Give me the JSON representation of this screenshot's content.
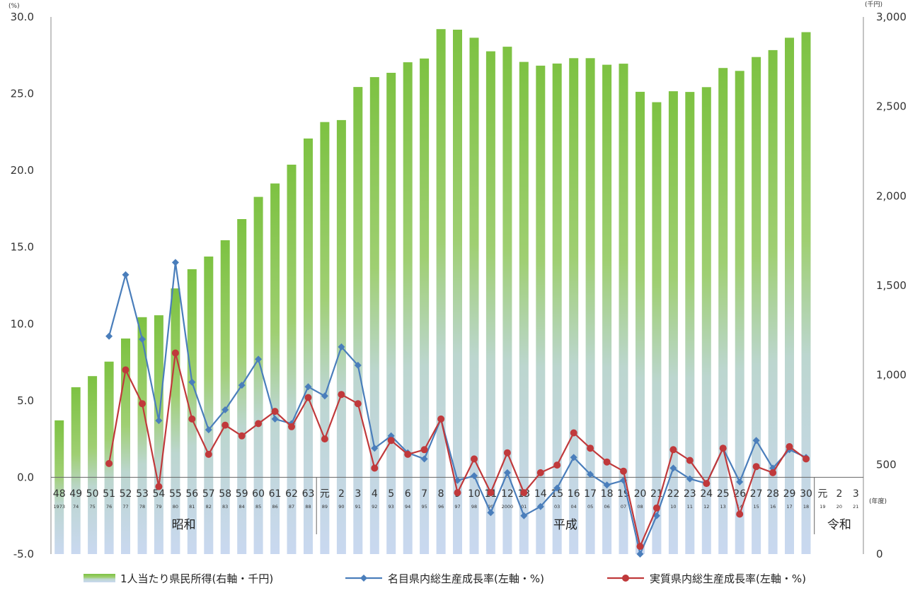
{
  "chart_data": {
    "type": "bar+line",
    "title": "",
    "left_axis": {
      "unit_label": "(%)",
      "ylim": [
        -5.0,
        30.0
      ],
      "ticks": [
        "30.0",
        "25.0",
        "20.0",
        "15.0",
        "10.0",
        "5.0",
        "0.0",
        "-5.0"
      ],
      "negative_color": "#e03020"
    },
    "right_axis": {
      "unit_label": "(千円)",
      "ylim": [
        0,
        3000
      ],
      "ticks": [
        "3,000",
        "2,500",
        "2,000",
        "1,500",
        "1,000",
        "500",
        "0"
      ]
    },
    "x_unit_label": "(年度)",
    "categories": [
      "48",
      "49",
      "50",
      "51",
      "52",
      "53",
      "54",
      "55",
      "56",
      "57",
      "58",
      "59",
      "60",
      "61",
      "62",
      "63",
      "元",
      "2",
      "3",
      "4",
      "5",
      "6",
      "7",
      "8",
      "9",
      "10",
      "11",
      "12",
      "13",
      "14",
      "15",
      "16",
      "17",
      "18",
      "19",
      "20",
      "21",
      "22",
      "23",
      "24",
      "25",
      "26",
      "27",
      "28",
      "29",
      "30",
      "元",
      "2",
      "3"
    ],
    "subcategories": [
      "1973",
      "74",
      "75",
      "76",
      "77",
      "78",
      "79",
      "80",
      "81",
      "82",
      "83",
      "84",
      "85",
      "86",
      "87",
      "88",
      "89",
      "90",
      "91",
      "92",
      "93",
      "94",
      "95",
      "96",
      "97",
      "98",
      "99",
      "2000",
      "01",
      "02",
      "03",
      "04",
      "05",
      "06",
      "07",
      "08",
      "09",
      "10",
      "11",
      "12",
      "13",
      "14",
      "15",
      "16",
      "17",
      "18",
      "19",
      "20",
      "21"
    ],
    "eras": [
      {
        "label": "昭和",
        "start": 0,
        "end": 15
      },
      {
        "label": "平成",
        "start": 16,
        "end": 45
      },
      {
        "label": "令和",
        "start": 46,
        "end": 48
      }
    ],
    "series": [
      {
        "name": "1人当たり県民所得(右軸・千円)",
        "type": "bar",
        "axis": "right",
        "color_top": "#7dc242",
        "color_bottom": "#c9d8f0",
        "values": [
          747,
          932,
          994,
          1075,
          1204,
          1323,
          1334,
          1484,
          1591,
          1662,
          1753,
          1871,
          1995,
          2070,
          2175,
          2321,
          2413,
          2424,
          2609,
          2664,
          2688,
          2747,
          2768,
          2932,
          2929,
          2884,
          2808,
          2834,
          2749,
          2728,
          2740,
          2770,
          2770,
          2733,
          2739,
          2582,
          2524,
          2585,
          2581,
          2608,
          2715,
          2699,
          2776,
          2815,
          2884,
          2915,
          null,
          null,
          null
        ]
      },
      {
        "name": "名目県内総生産成長率(左軸・%)",
        "type": "line",
        "axis": "left",
        "color": "#4a7ebb",
        "marker": "diamond",
        "values": [
          null,
          null,
          null,
          9.2,
          13.2,
          9.0,
          3.7,
          14.0,
          6.2,
          3.1,
          4.4,
          6.0,
          7.7,
          3.8,
          3.5,
          5.9,
          5.3,
          8.5,
          7.3,
          1.9,
          2.7,
          1.6,
          1.2,
          3.8,
          -0.2,
          0.1,
          -2.3,
          0.3,
          -2.5,
          -1.9,
          -0.7,
          1.3,
          0.2,
          -0.5,
          -0.2,
          -5.0,
          -2.5,
          0.6,
          -0.1,
          -0.4,
          1.9,
          -0.3,
          2.4,
          0.6,
          1.8,
          1.3,
          null,
          null,
          null
        ]
      },
      {
        "name": "実質県内総生産成長率(左軸・%)",
        "type": "line",
        "axis": "left",
        "color": "#c0393b",
        "marker": "circle",
        "values": [
          null,
          null,
          null,
          0.9,
          7.0,
          4.8,
          -0.6,
          8.1,
          3.8,
          1.5,
          3.4,
          2.7,
          3.5,
          4.3,
          3.3,
          5.2,
          2.5,
          5.4,
          4.8,
          0.6,
          2.4,
          1.5,
          1.8,
          3.8,
          -1.0,
          1.2,
          -1.0,
          1.6,
          -1.0,
          0.3,
          0.8,
          2.9,
          1.9,
          1.0,
          0.4,
          -4.5,
          -2.0,
          1.8,
          1.1,
          -0.4,
          1.9,
          -2.4,
          0.7,
          0.3,
          2.0,
          1.2,
          null,
          null,
          null
        ]
      }
    ]
  }
}
